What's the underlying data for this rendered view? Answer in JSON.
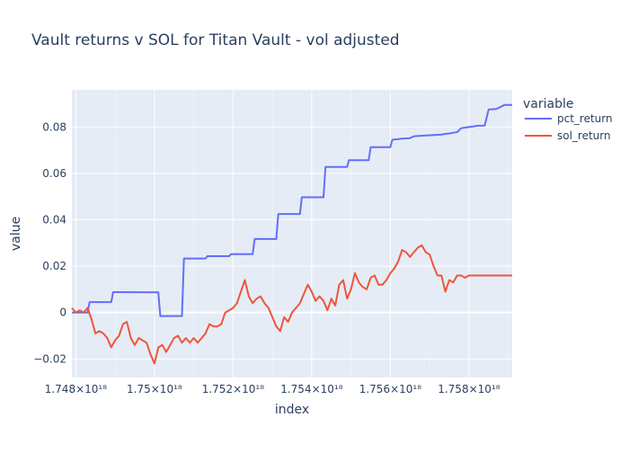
{
  "chart_data": {
    "type": "line",
    "title": "Vault returns v SOL for Titan Vault - vol adjusted",
    "xlabel": "index",
    "ylabel": "value",
    "legend_title": "variable",
    "legend_position": "right",
    "grid": true,
    "colors": {
      "plot_bg": "#e5ecf6",
      "grid": "#ffffff",
      "text": "#2a3f5f",
      "pct_return": "#636efa",
      "sol_return": "#ef553b"
    },
    "xlim": [
      1747.9,
      1759.1
    ],
    "ylim": [
      -0.028,
      0.096
    ],
    "x_ticks": [
      {
        "value": 1748,
        "label": "1.748×10¹⁸"
      },
      {
        "value": 1750,
        "label": "1.75×10¹⁸"
      },
      {
        "value": 1752,
        "label": "1.752×10¹⁸"
      },
      {
        "value": 1754,
        "label": "1.754×10¹⁸"
      },
      {
        "value": 1756,
        "label": "1.756×10¹⁸"
      },
      {
        "value": 1758,
        "label": "1.758×10¹⁸"
      }
    ],
    "y_ticks": [
      {
        "value": -0.02,
        "label": "−0.02"
      },
      {
        "value": 0,
        "label": "0"
      },
      {
        "value": 0.02,
        "label": "0.02"
      },
      {
        "value": 0.04,
        "label": "0.04"
      },
      {
        "value": 0.06,
        "label": "0.06"
      },
      {
        "value": 0.08,
        "label": "0.08"
      }
    ],
    "x_scale_note": "x values expressed in units of 10^15 (tick labels show ×10^18)",
    "series": [
      {
        "name": "pct_return",
        "x": [
          1747.9,
          1748.3,
          1748.35,
          1748.9,
          1748.95,
          1750.1,
          1750.15,
          1750.7,
          1750.75,
          1751.3,
          1751.35,
          1751.9,
          1751.95,
          1752.5,
          1752.55,
          1753.1,
          1753.15,
          1753.7,
          1753.75,
          1754.3,
          1754.35,
          1754.9,
          1754.95,
          1755.45,
          1755.5,
          1756.0,
          1756.05,
          1756.2,
          1756.3,
          1756.5,
          1756.6,
          1756.9,
          1757.1,
          1757.3,
          1757.4,
          1757.5,
          1757.6,
          1757.7,
          1757.8,
          1758.1,
          1758.2,
          1758.4,
          1758.5,
          1758.7,
          1758.9,
          1759.1
        ],
        "y": [
          0.0,
          0.0,
          0.0045,
          0.0045,
          0.0088,
          0.0087,
          -0.0015,
          -0.0015,
          0.0233,
          0.0233,
          0.0243,
          0.0243,
          0.0252,
          0.0252,
          0.0317,
          0.0317,
          0.0425,
          0.0425,
          0.0497,
          0.0497,
          0.0628,
          0.0628,
          0.0657,
          0.0657,
          0.0713,
          0.0713,
          0.0745,
          0.0748,
          0.075,
          0.0752,
          0.076,
          0.0763,
          0.0765,
          0.0767,
          0.077,
          0.0772,
          0.0775,
          0.0778,
          0.0795,
          0.0802,
          0.0805,
          0.0806,
          0.0875,
          0.0878,
          0.0895,
          0.0895
        ]
      },
      {
        "name": "sol_return",
        "x": [
          1747.9,
          1748.0,
          1748.1,
          1748.2,
          1748.3,
          1748.4,
          1748.5,
          1748.6,
          1748.7,
          1748.8,
          1748.9,
          1749.0,
          1749.1,
          1749.2,
          1749.3,
          1749.4,
          1749.5,
          1749.6,
          1749.7,
          1749.8,
          1749.9,
          1750.0,
          1750.1,
          1750.2,
          1750.3,
          1750.4,
          1750.5,
          1750.6,
          1750.7,
          1750.8,
          1750.9,
          1751.0,
          1751.1,
          1751.2,
          1751.3,
          1751.4,
          1751.5,
          1751.6,
          1751.7,
          1751.8,
          1751.9,
          1752.0,
          1752.1,
          1752.2,
          1752.3,
          1752.4,
          1752.5,
          1752.6,
          1752.7,
          1752.8,
          1752.9,
          1753.0,
          1753.1,
          1753.2,
          1753.3,
          1753.4,
          1753.5,
          1753.6,
          1753.7,
          1753.8,
          1753.9,
          1754.0,
          1754.1,
          1754.2,
          1754.3,
          1754.4,
          1754.5,
          1754.6,
          1754.7,
          1754.8,
          1754.9,
          1755.0,
          1755.1,
          1755.2,
          1755.3,
          1755.4,
          1755.5,
          1755.6,
          1755.7,
          1755.8,
          1755.9,
          1756.0,
          1756.1,
          1756.2,
          1756.3,
          1756.4,
          1756.5,
          1756.6,
          1756.7,
          1756.8,
          1756.9,
          1757.0,
          1757.1,
          1757.2,
          1757.3,
          1757.4,
          1757.5,
          1757.6,
          1757.7,
          1757.8,
          1757.9,
          1758.0,
          1758.1,
          1758.2,
          1758.3,
          1758.4,
          1758.5,
          1758.6,
          1758.7,
          1758.8,
          1758.9,
          1759.0,
          1759.1
        ],
        "y": [
          0.002,
          0.0,
          0.001,
          0.0,
          0.002,
          -0.003,
          -0.009,
          -0.008,
          -0.009,
          -0.011,
          -0.015,
          -0.012,
          -0.01,
          -0.005,
          -0.004,
          -0.011,
          -0.014,
          -0.011,
          -0.012,
          -0.013,
          -0.018,
          -0.022,
          -0.015,
          -0.014,
          -0.017,
          -0.014,
          -0.011,
          -0.01,
          -0.013,
          -0.011,
          -0.013,
          -0.011,
          -0.013,
          -0.011,
          -0.009,
          -0.005,
          -0.006,
          -0.006,
          -0.005,
          0.0,
          0.001,
          0.002,
          0.004,
          0.009,
          0.014,
          0.007,
          0.004,
          0.006,
          0.007,
          0.004,
          0.002,
          -0.002,
          -0.006,
          -0.008,
          -0.002,
          -0.004,
          0.0,
          0.002,
          0.004,
          0.008,
          0.012,
          0.009,
          0.005,
          0.007,
          0.005,
          0.001,
          0.006,
          0.003,
          0.012,
          0.014,
          0.006,
          0.01,
          0.017,
          0.013,
          0.011,
          0.01,
          0.015,
          0.016,
          0.012,
          0.012,
          0.014,
          0.017,
          0.019,
          0.022,
          0.027,
          0.026,
          0.024,
          0.026,
          0.028,
          0.029,
          0.026,
          0.025,
          0.02,
          0.016,
          0.016,
          0.009,
          0.014,
          0.013,
          0.016,
          0.016,
          0.015,
          0.016,
          0.016,
          0.016,
          0.016,
          0.016,
          0.016,
          0.016,
          0.016,
          0.016,
          0.016,
          0.016,
          0.016
        ]
      }
    ]
  }
}
